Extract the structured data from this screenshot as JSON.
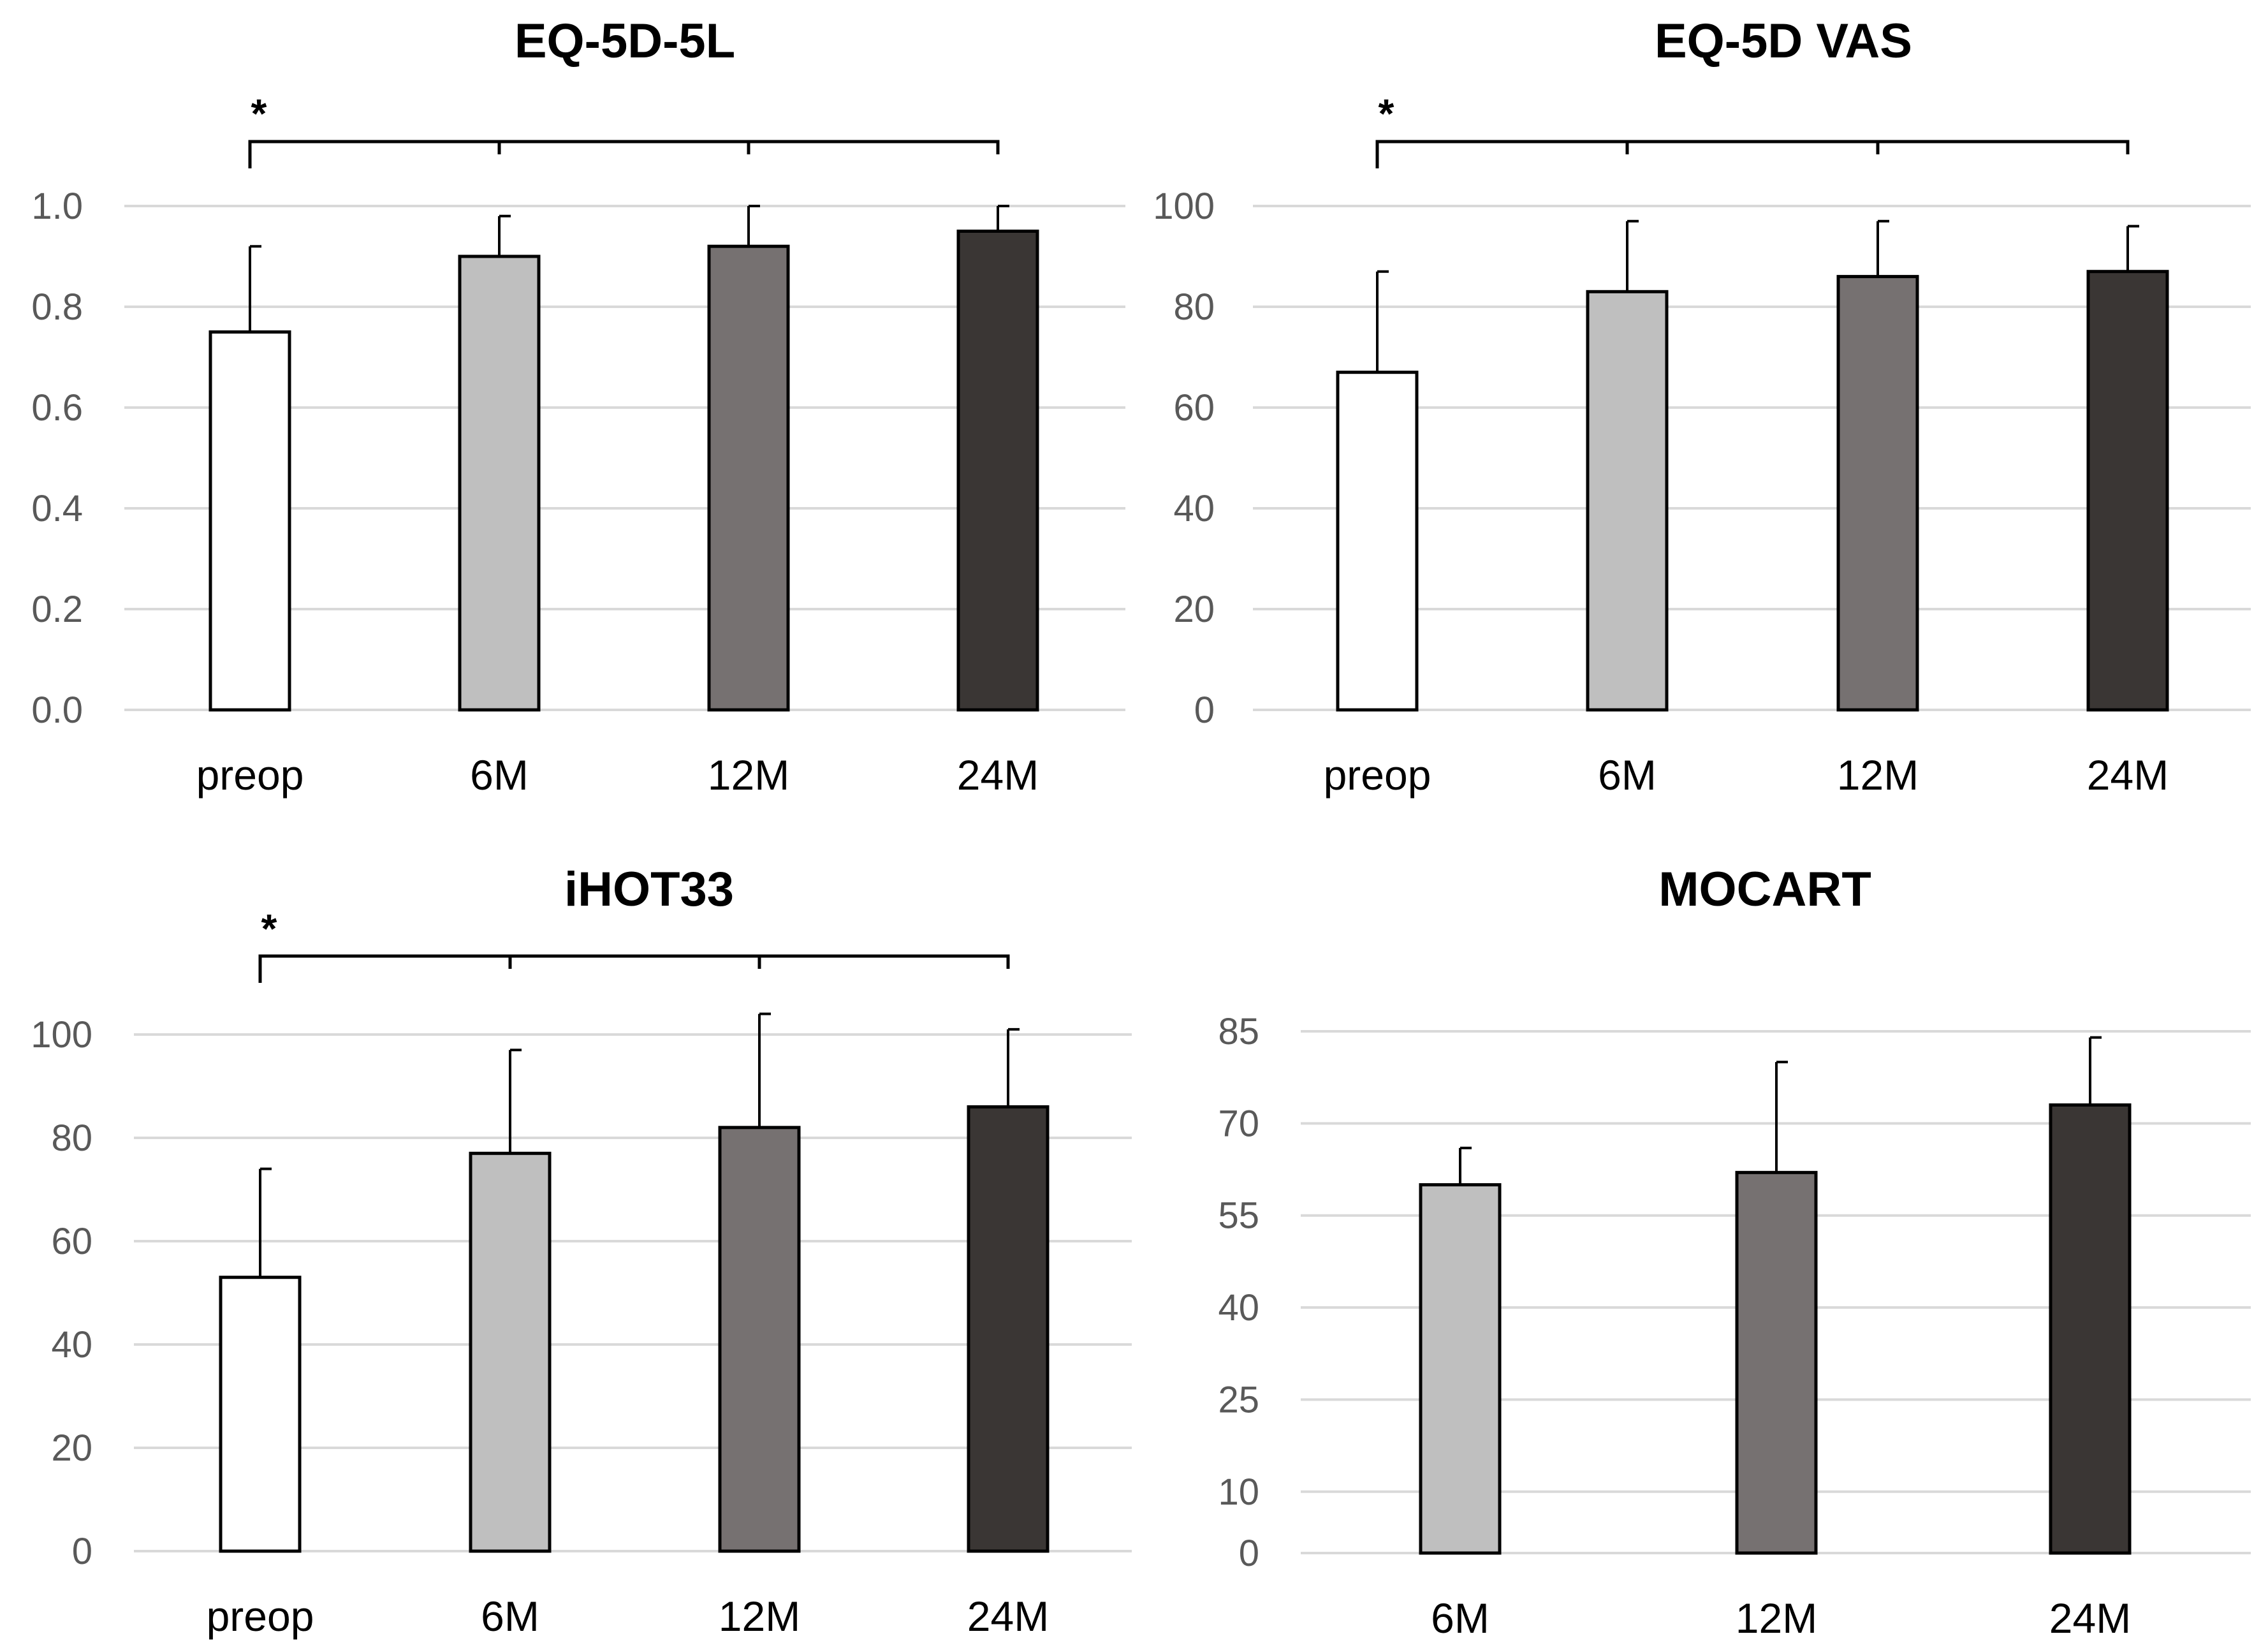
{
  "colors": {
    "preop": "#ffffff",
    "6M": "#bfbfbf",
    "12M": "#767171",
    "24M": "#3a3634",
    "grid": "#d9d9d9",
    "tick_text": "#595959"
  },
  "chart_data": [
    {
      "type": "bar",
      "title": "EQ-5D-5L",
      "categories": [
        "preop",
        "6M",
        "12M",
        "24M"
      ],
      "values": [
        0.75,
        0.9,
        0.92,
        0.95
      ],
      "errors": [
        0.17,
        0.08,
        0.08,
        0.05
      ],
      "ylim": [
        0,
        1.0
      ],
      "yticks": [
        0.0,
        0.2,
        0.4,
        0.6,
        0.8,
        1.0
      ],
      "ytick_labels": [
        "0.0",
        "0.2",
        "0.4",
        "0.6",
        "0.8",
        "1.0"
      ],
      "xlabel": "",
      "ylabel": "",
      "grid": true,
      "significance": {
        "label": "*",
        "from": "preop",
        "to": [
          "6M",
          "12M",
          "24M"
        ]
      }
    },
    {
      "type": "bar",
      "title": "EQ-5D VAS",
      "categories": [
        "preop",
        "6M",
        "12M",
        "24M"
      ],
      "values": [
        67,
        83,
        86,
        87
      ],
      "errors": [
        20,
        14,
        11,
        9
      ],
      "ylim": [
        0,
        100
      ],
      "yticks": [
        0,
        20,
        40,
        60,
        80,
        100
      ],
      "ytick_labels": [
        "0",
        "20",
        "40",
        "60",
        "80",
        "100"
      ],
      "xlabel": "",
      "ylabel": "",
      "grid": true,
      "significance": {
        "label": "*",
        "from": "preop",
        "to": [
          "6M",
          "12M",
          "24M"
        ]
      }
    },
    {
      "type": "bar",
      "title": "iHOT33",
      "categories": [
        "preop",
        "6M",
        "12M",
        "24M"
      ],
      "values": [
        53,
        77,
        82,
        86
      ],
      "errors": [
        21,
        20,
        22,
        15
      ],
      "ylim": [
        0,
        100
      ],
      "yticks": [
        0,
        20,
        40,
        60,
        80,
        100
      ],
      "ytick_labels": [
        "0",
        "20",
        "40",
        "60",
        "80",
        "100"
      ],
      "xlabel": "",
      "ylabel": "",
      "grid": true,
      "significance": {
        "label": "*",
        "from": "preop",
        "to": [
          "6M",
          "12M",
          "24M"
        ]
      }
    },
    {
      "type": "bar",
      "title": "MOCART",
      "categories": [
        "6M",
        "12M",
        "24M"
      ],
      "values": [
        60,
        62,
        73
      ],
      "errors": [
        6,
        18,
        11
      ],
      "ylim": [
        0,
        85
      ],
      "yticks": [
        0,
        10,
        25,
        40,
        55,
        70,
        85
      ],
      "ytick_labels": [
        "0",
        "10",
        "25",
        "40",
        "55",
        "70",
        "85"
      ],
      "xlabel": "",
      "ylabel": "",
      "grid": true,
      "significance": null
    }
  ]
}
